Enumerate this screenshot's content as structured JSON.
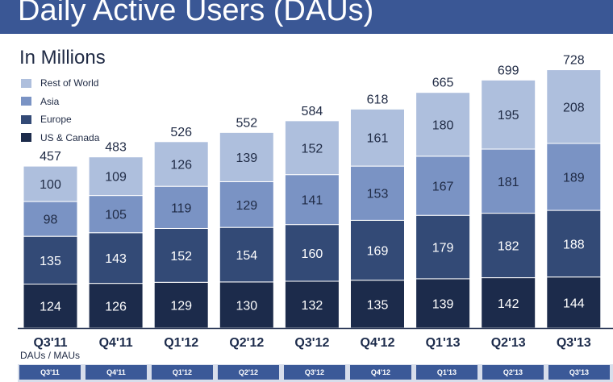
{
  "header": {
    "title": "Daily Active Users (DAUs)",
    "color": "#3a5795"
  },
  "subtitle": "In Millions",
  "footer": {
    "dau_mau_label": "DAUs / MAUs",
    "quarters": [
      "Q3'11",
      "Q4'11",
      "Q1'12",
      "Q2'12",
      "Q3'12",
      "Q4'12",
      "Q1'13",
      "Q2'13",
      "Q3'13"
    ]
  },
  "chart_data": {
    "type": "bar",
    "stacked": true,
    "categories": [
      "Q3'11",
      "Q4'11",
      "Q1'12",
      "Q2'12",
      "Q3'12",
      "Q4'12",
      "Q1'13",
      "Q2'13",
      "Q3'13"
    ],
    "series": [
      {
        "name": "US & Canada",
        "values": [
          124,
          126,
          129,
          130,
          132,
          135,
          139,
          142,
          144
        ],
        "color": "#1c2b4b"
      },
      {
        "name": "Europe",
        "values": [
          135,
          143,
          152,
          154,
          160,
          169,
          179,
          182,
          188
        ],
        "color": "#334a76"
      },
      {
        "name": "Asia",
        "values": [
          98,
          105,
          119,
          129,
          141,
          153,
          167,
          181,
          189
        ],
        "color": "#7a93c4"
      },
      {
        "name": "Rest of World",
        "values": [
          100,
          109,
          126,
          139,
          152,
          161,
          180,
          195,
          208
        ],
        "color": "#aebfdd"
      }
    ],
    "totals": [
      457,
      483,
      526,
      552,
      584,
      618,
      665,
      699,
      728
    ],
    "title": "Daily Active Users (DAUs)",
    "subtitle": "In Millions",
    "xlabel": "",
    "ylabel": "",
    "legend_position": "top-left",
    "legend_order": [
      "Rest of World",
      "Asia",
      "Europe",
      "US & Canada"
    ],
    "grid": false
  }
}
